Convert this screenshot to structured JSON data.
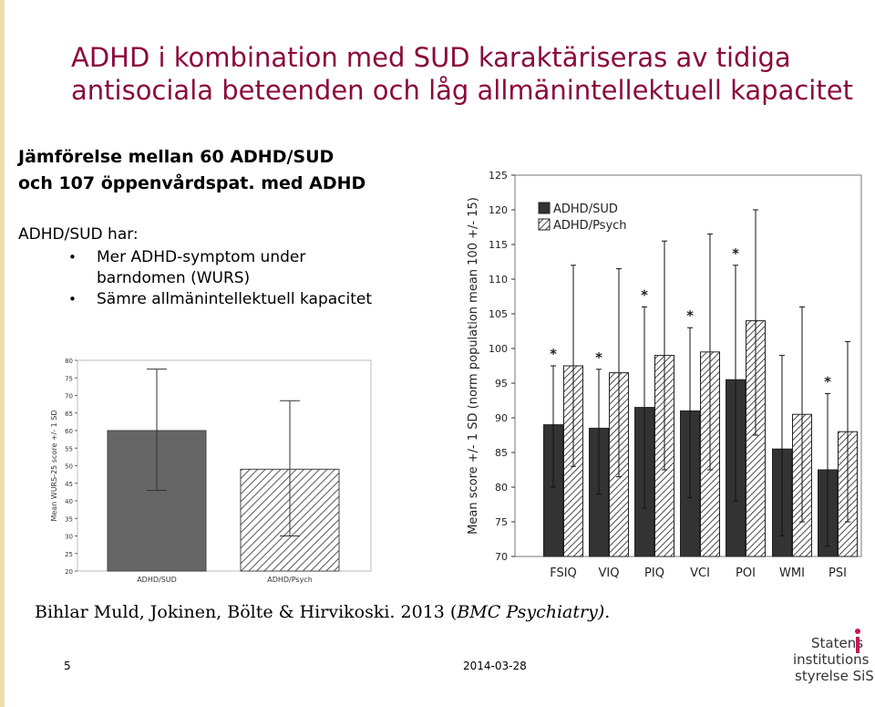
{
  "slide": {
    "title_line1": "ADHD i kombination med SUD karaktäriseras av tidiga",
    "title_line2": "antisociala beteenden och låg allmänintellektuell kapacitet",
    "subtitle_line1": "Jämförelse mellan 60 ADHD/SUD",
    "subtitle_line2": "och 107 öppenvårdspat. med ADHD",
    "intro": "ADHD/SUD har:",
    "bullet1_line1": "Mer ADHD-symptom under",
    "bullet1_line2": "barndomen (WURS)",
    "bullet2": "Sämre allmänintellektuell kapacitet",
    "citation_main": "Bihlar Muld, Jokinen, Bölte & Hirvikoski. 2013 (",
    "citation_journal": "BMC Psychiatry)",
    "citation_end": ".",
    "page_number": "5",
    "date": "2014-03-28"
  },
  "logo": {
    "line1": "Statens",
    "line2": "institutions",
    "line3": "styrelse SiS",
    "accent_color": "#c2185b"
  },
  "colors": {
    "title": "#8b0a3c",
    "left_bar": "#e9e0a8",
    "bar_dark": "#666666",
    "bar_iq_dark": "#333333"
  },
  "chart_data": [
    {
      "type": "bar",
      "categories": [
        "ADHD/SUD",
        "ADHD/Psych"
      ],
      "values": [
        60,
        49
      ],
      "error_upper": [
        77.5,
        68.5
      ],
      "error_lower": [
        43,
        30
      ],
      "ylabel": "Mean WURS-25 score +/- 1 SD",
      "ylim": [
        20,
        80
      ],
      "yticks": [
        20,
        25,
        30,
        35,
        40,
        45,
        50,
        55,
        60,
        65,
        70,
        75,
        80
      ]
    },
    {
      "type": "bar",
      "categories": [
        "FSIQ",
        "VIQ",
        "PIQ",
        "VCI",
        "POI",
        "WMI",
        "PSI"
      ],
      "series": [
        {
          "name": "ADHD/SUD",
          "values": [
            89,
            88.5,
            91.5,
            91,
            95.5,
            85.5,
            82.5
          ],
          "upper": [
            97.5,
            97,
            106,
            103,
            112,
            99,
            93.5
          ],
          "lower": [
            80,
            79,
            77,
            78.5,
            78,
            73,
            71.5
          ]
        },
        {
          "name": "ADHD/Psych",
          "values": [
            97.5,
            96.5,
            99,
            99.5,
            104,
            90.5,
            88
          ],
          "upper": [
            112,
            111.5,
            115.5,
            116.5,
            120,
            106,
            101
          ],
          "lower": [
            83,
            81.5,
            82.5,
            82.5,
            87.5,
            75,
            75
          ]
        }
      ],
      "significant": [
        "*",
        "*",
        "*",
        "*",
        "*",
        "",
        "*"
      ],
      "ylabel": "Mean score +/- 1 SD (norm population mean 100 +/- 15)",
      "ylim": [
        70,
        125
      ],
      "yticks": [
        70,
        75,
        80,
        85,
        90,
        95,
        100,
        105,
        110,
        115,
        120,
        125
      ],
      "legend_position": "top-left"
    }
  ]
}
